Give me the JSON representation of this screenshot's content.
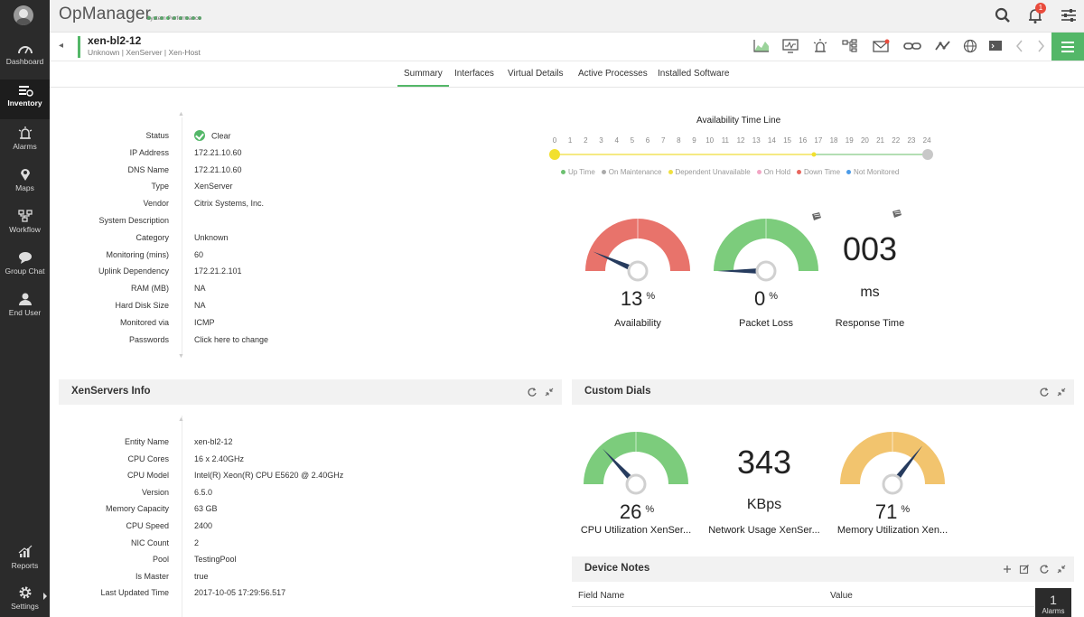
{
  "app": {
    "title": "OpManager",
    "subtitle": "System Performance",
    "notification_count": "1"
  },
  "sidebar": {
    "items": [
      {
        "label": "Dashboard",
        "icon": "dashboard-icon"
      },
      {
        "label": "Inventory",
        "icon": "inventory-icon",
        "active": true
      },
      {
        "label": "Alarms",
        "icon": "alarm-icon"
      },
      {
        "label": "Maps",
        "icon": "map-pin-icon"
      },
      {
        "label": "Workflow",
        "icon": "workflow-icon"
      },
      {
        "label": "Group Chat",
        "icon": "chat-icon"
      },
      {
        "label": "End User",
        "icon": "user-icon"
      },
      {
        "label": "Reports",
        "icon": "reports-icon"
      },
      {
        "label": "Settings",
        "icon": "gear-icon"
      }
    ]
  },
  "device": {
    "name": "xen-bl2-12",
    "subtitle": "Unknown | XenServer  | Xen-Host"
  },
  "tabs": [
    {
      "label": "Summary",
      "active": true
    },
    {
      "label": "Interfaces"
    },
    {
      "label": "Virtual Details"
    },
    {
      "label": "Active Processes"
    },
    {
      "label": "Installed Software"
    }
  ],
  "summary": {
    "rows": [
      {
        "key": "Status",
        "value": "Clear"
      },
      {
        "key": "IP Address",
        "value": "172.21.10.60"
      },
      {
        "key": "DNS Name",
        "value": "172.21.10.60"
      },
      {
        "key": "Type",
        "value": "XenServer"
      },
      {
        "key": "Vendor",
        "value": "Citrix Systems, Inc."
      },
      {
        "key": "System Description",
        "value": ""
      },
      {
        "key": "Category",
        "value": "Unknown"
      },
      {
        "key": "Monitoring (mins)",
        "value": "60"
      },
      {
        "key": "Uplink Dependency",
        "value": "172.21.2.101"
      },
      {
        "key": "RAM (MB)",
        "value": "NA"
      },
      {
        "key": "Hard Disk Size",
        "value": "NA"
      },
      {
        "key": "Monitored via",
        "value": "ICMP"
      },
      {
        "key": "Passwords",
        "value": "Click here to change"
      }
    ]
  },
  "timeline": {
    "title": "Availability Time Line",
    "ticks": [
      "0",
      "1",
      "2",
      "3",
      "4",
      "5",
      "6",
      "7",
      "8",
      "9",
      "10",
      "11",
      "12",
      "13",
      "14",
      "15",
      "16",
      "17",
      "18",
      "19",
      "20",
      "21",
      "22",
      "23",
      "24"
    ],
    "legend": [
      {
        "label": "Up Time",
        "color": "#6cc070"
      },
      {
        "label": "On Maintenance",
        "color": "#aaaaaa"
      },
      {
        "label": "Dependent Unavailable",
        "color": "#f0e040"
      },
      {
        "label": "On Hold",
        "color": "#f2a6c4"
      },
      {
        "label": "Down Time",
        "color": "#e8665e"
      },
      {
        "label": "Not Monitored",
        "color": "#4b9be8"
      }
    ]
  },
  "gauges": {
    "availability": {
      "value": "13",
      "unit": "%",
      "label": "Availability",
      "fraction": 0.13,
      "color": "#e8736b"
    },
    "packet_loss": {
      "value": "0",
      "unit": "%",
      "label": "Packet Loss",
      "fraction": 0.0,
      "color": "#7ccc7c"
    },
    "response_time": {
      "value": "003",
      "unit": "ms",
      "label": "Response Time"
    }
  },
  "xen_info": {
    "title": "XenServers Info",
    "rows": [
      {
        "key": "Entity Name",
        "value": "xen-bl2-12"
      },
      {
        "key": "CPU Cores",
        "value": "16 x 2.40GHz"
      },
      {
        "key": "CPU Model",
        "value": "Intel(R) Xeon(R) CPU E5620 @ 2.40GHz"
      },
      {
        "key": "Version",
        "value": "6.5.0"
      },
      {
        "key": "Memory Capacity",
        "value": "63 GB"
      },
      {
        "key": "CPU Speed",
        "value": "2400"
      },
      {
        "key": "NIC Count",
        "value": "2"
      },
      {
        "key": "Pool",
        "value": "TestingPool"
      },
      {
        "key": "Is Master",
        "value": "true"
      },
      {
        "key": "Last Updated Time",
        "value": "2017-10-05 17:29:56.517"
      }
    ]
  },
  "custom_dials": {
    "title": "Custom Dials",
    "cpu": {
      "value": "26",
      "unit": "%",
      "label": "CPU Utilization XenSer...",
      "fraction": 0.26,
      "color": "#7ccc7c"
    },
    "network": {
      "value": "343",
      "unit": "KBps",
      "label": "Network Usage XenSer..."
    },
    "memory": {
      "value": "71",
      "unit": "%",
      "label": "Memory Utilization Xen...",
      "fraction": 0.71,
      "color": "#f2c46e"
    }
  },
  "device_notes": {
    "title": "Device Notes",
    "col_field": "Field Name",
    "col_value": "Value"
  },
  "alarm_counter": {
    "count": "1",
    "label": "Alarms"
  }
}
